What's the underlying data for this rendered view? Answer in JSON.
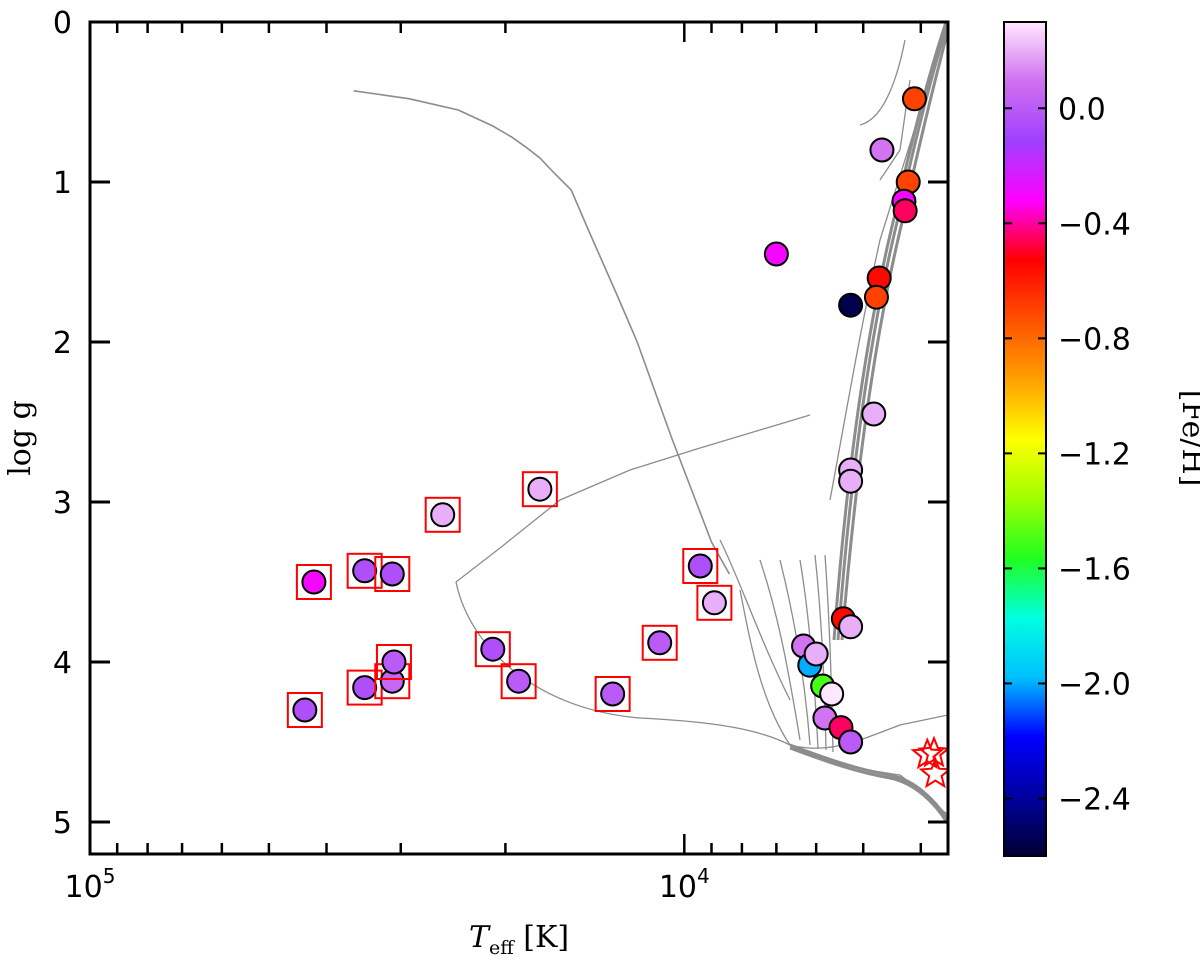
{
  "chart_data": {
    "type": "scatter",
    "xlabel": {
      "italic": "T",
      "sub": "eff",
      "rest": " [K]"
    },
    "ylabel": "log g",
    "x_scale": "log",
    "x_reversed": true,
    "xlim": [
      100000,
      3600
    ],
    "ylim": [
      5.2,
      0
    ],
    "x_ticks": [
      {
        "value": 100000,
        "base": "10",
        "exp": "5"
      },
      {
        "value": 10000,
        "base": "10",
        "exp": "4"
      }
    ],
    "y_ticks": [
      0,
      1,
      2,
      3,
      4,
      5
    ],
    "y_tick_labels": [
      "0",
      "1",
      "2",
      "3",
      "4",
      "5"
    ],
    "grid": false,
    "colorbar": {
      "label": "[Fe/H]",
      "range": [
        -2.6,
        0.3
      ],
      "ticks": [
        0.0,
        -0.4,
        -0.8,
        -1.2,
        -1.6,
        -2.0,
        -2.4
      ],
      "tick_labels": [
        "0.0",
        "−0.4",
        "−0.8",
        "−1.2",
        "−1.6",
        "−2.0",
        "−2.4"
      ],
      "colormap": [
        "#000033",
        "#0000a0",
        "#0000ff",
        "#00c0ff",
        "#00ffe0",
        "#20ff20",
        "#a0ff00",
        "#ffff00",
        "#ffa000",
        "#ff5000",
        "#ff0000",
        "#ff00ff",
        "#a040ff",
        "#d070f0",
        "#ffe8ff"
      ]
    },
    "series": [
      {
        "marker": "circle-in-red-square",
        "points": [
          {
            "teff": 43500,
            "logg": 4.3,
            "feh": -0.05
          },
          {
            "teff": 42000,
            "logg": 3.5,
            "feh": -0.3
          },
          {
            "teff": 34500,
            "logg": 3.43,
            "feh": -0.05
          },
          {
            "teff": 34500,
            "logg": 4.16,
            "feh": -0.05
          },
          {
            "teff": 31000,
            "logg": 3.45,
            "feh": -0.05
          },
          {
            "teff": 31000,
            "logg": 4.12,
            "feh": 0.05
          },
          {
            "teff": 30800,
            "logg": 4.0,
            "feh": 0.0
          },
          {
            "teff": 25500,
            "logg": 3.08,
            "feh": 0.2
          },
          {
            "teff": 21000,
            "logg": 3.92,
            "feh": -0.05
          },
          {
            "teff": 19000,
            "logg": 4.12,
            "feh": 0.0
          },
          {
            "teff": 17500,
            "logg": 2.92,
            "feh": 0.2
          },
          {
            "teff": 13200,
            "logg": 4.2,
            "feh": 0.0
          },
          {
            "teff": 11000,
            "logg": 3.88,
            "feh": 0.0
          },
          {
            "teff": 9400,
            "logg": 3.4,
            "feh": -0.05
          },
          {
            "teff": 8900,
            "logg": 3.63,
            "feh": 0.2
          }
        ]
      },
      {
        "marker": "circle",
        "points": [
          {
            "teff": 7000,
            "logg": 1.45,
            "feh": -0.3
          },
          {
            "teff": 6300,
            "logg": 3.9,
            "feh": 0.1
          },
          {
            "teff": 6150,
            "logg": 4.02,
            "feh": -2.0
          },
          {
            "teff": 6000,
            "logg": 3.95,
            "feh": 0.2
          },
          {
            "teff": 5850,
            "logg": 4.15,
            "feh": -1.5
          },
          {
            "teff": 5800,
            "logg": 4.35,
            "feh": 0.1
          },
          {
            "teff": 5650,
            "logg": 4.2,
            "feh": 0.3
          },
          {
            "teff": 5450,
            "logg": 4.41,
            "feh": -0.45
          },
          {
            "teff": 5400,
            "logg": 3.73,
            "feh": -0.55
          },
          {
            "teff": 5250,
            "logg": 4.5,
            "feh": 0.0
          },
          {
            "teff": 5250,
            "logg": 3.78,
            "feh": 0.2
          },
          {
            "teff": 5250,
            "logg": 2.8,
            "feh": 0.2
          },
          {
            "teff": 5250,
            "logg": 2.87,
            "feh": 0.2
          },
          {
            "teff": 5250,
            "logg": 1.77,
            "feh": -2.55
          },
          {
            "teff": 4800,
            "logg": 2.45,
            "feh": 0.2
          },
          {
            "teff": 4650,
            "logg": 0.8,
            "feh": 0.1
          },
          {
            "teff": 4700,
            "logg": 1.6,
            "feh": -0.55
          },
          {
            "teff": 4750,
            "logg": 1.72,
            "feh": -0.7
          },
          {
            "teff": 4200,
            "logg": 1.0,
            "feh": -0.7
          },
          {
            "teff": 4270,
            "logg": 1.12,
            "feh": -0.3
          },
          {
            "teff": 4250,
            "logg": 1.18,
            "feh": -0.45
          },
          {
            "teff": 4100,
            "logg": 0.48,
            "feh": -0.7
          }
        ]
      },
      {
        "marker": "open-star",
        "color": "#ff0000",
        "points": [
          {
            "teff": 3900,
            "logg": 4.58
          },
          {
            "teff": 3800,
            "logg": 4.57
          },
          {
            "teff": 3780,
            "logg": 4.7
          }
        ]
      }
    ],
    "tracks": [
      {
        "name": "",
        "points": [
          [
            8400,
            3.45
          ],
          [
            9000,
            3.25
          ],
          [
            10500,
            2.6
          ],
          [
            12000,
            2.0
          ],
          [
            13000,
            1.7
          ],
          [
            14500,
            1.3
          ],
          [
            15500,
            1.05
          ],
          [
            16500,
            0.95
          ],
          [
            17500,
            0.85
          ],
          [
            18500,
            0.78
          ],
          [
            19500,
            0.72
          ],
          [
            21000,
            0.65
          ],
          [
            24000,
            0.55
          ],
          [
            29000,
            0.48
          ],
          [
            33000,
            0.45
          ],
          [
            36000,
            0.43
          ]
        ]
      }
    ]
  }
}
